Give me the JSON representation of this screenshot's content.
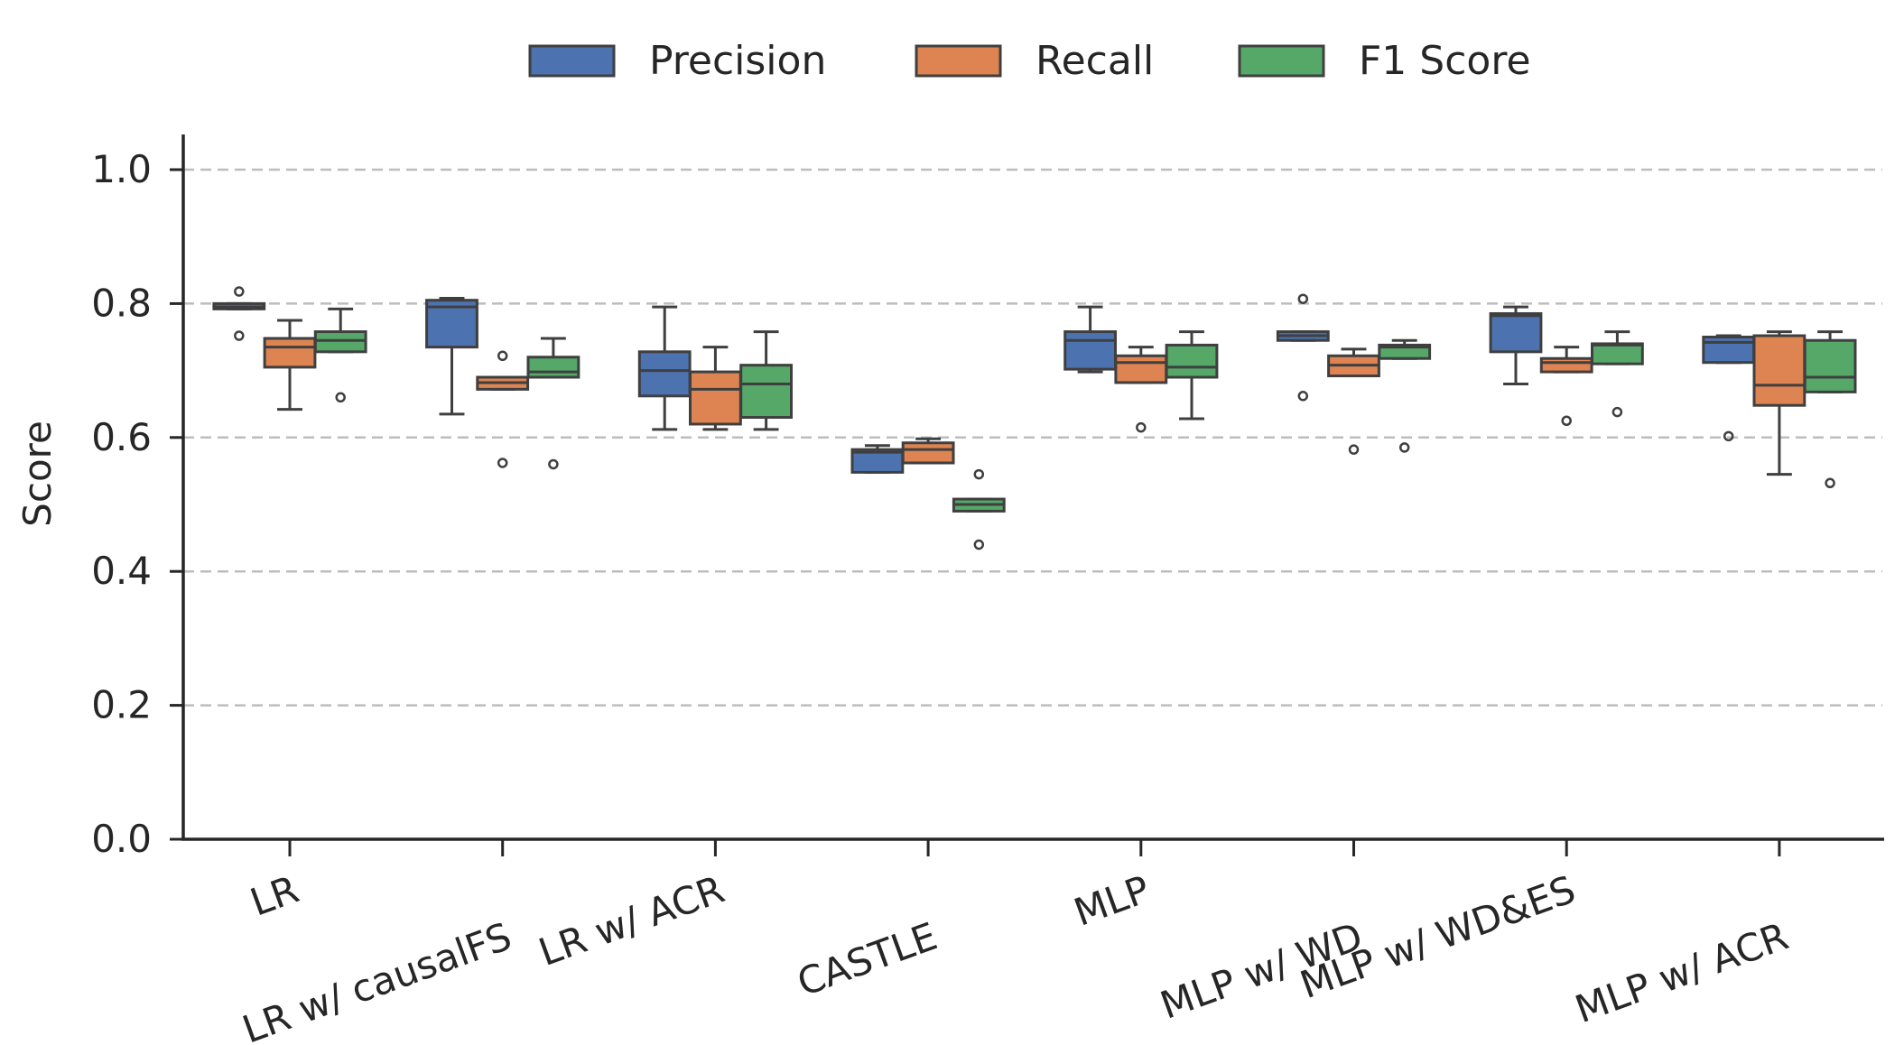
{
  "chart_data": {
    "type": "boxplot",
    "title": "",
    "xlabel": "",
    "ylabel": "Score",
    "ylim": [
      0.0,
      1.05
    ],
    "yticks": [
      0.0,
      0.2,
      0.4,
      0.6,
      0.8,
      1.0
    ],
    "ytick_labels": [
      "0.0",
      "0.2",
      "0.4",
      "0.6",
      "0.8",
      "1.0"
    ],
    "grid": "horizontal dashed",
    "legend": {
      "placement": "top-center"
    },
    "categories": [
      "LR",
      "LR w/ causalFS",
      "LR w/ ACR",
      "CASTLE",
      "MLP",
      "MLP w/ WD",
      "MLP w/ WD&ES",
      "MLP w/ ACR"
    ],
    "series": [
      {
        "name": "Precision",
        "color": "#4c72b0",
        "boxes": [
          {
            "whislo": 0.792,
            "q1": 0.792,
            "med": 0.795,
            "q3": 0.8,
            "whishi": 0.8,
            "fliers": [
              0.818,
              0.752
            ]
          },
          {
            "whislo": 0.635,
            "q1": 0.735,
            "med": 0.795,
            "q3": 0.805,
            "whishi": 0.808,
            "fliers": []
          },
          {
            "whislo": 0.612,
            "q1": 0.662,
            "med": 0.7,
            "q3": 0.728,
            "whishi": 0.795,
            "fliers": []
          },
          {
            "whislo": 0.548,
            "q1": 0.548,
            "med": 0.578,
            "q3": 0.582,
            "whishi": 0.588,
            "fliers": []
          },
          {
            "whislo": 0.698,
            "q1": 0.702,
            "med": 0.745,
            "q3": 0.758,
            "whishi": 0.795,
            "fliers": []
          },
          {
            "whislo": 0.745,
            "q1": 0.745,
            "med": 0.752,
            "q3": 0.758,
            "whishi": 0.758,
            "fliers": [
              0.807,
              0.662
            ]
          },
          {
            "whislo": 0.68,
            "q1": 0.728,
            "med": 0.782,
            "q3": 0.785,
            "whishi": 0.795,
            "fliers": []
          },
          {
            "whislo": 0.712,
            "q1": 0.712,
            "med": 0.742,
            "q3": 0.75,
            "whishi": 0.752,
            "fliers": [
              0.602
            ]
          }
        ]
      },
      {
        "name": "Recall",
        "color": "#dd8452",
        "boxes": [
          {
            "whislo": 0.642,
            "q1": 0.705,
            "med": 0.735,
            "q3": 0.748,
            "whishi": 0.775,
            "fliers": []
          },
          {
            "whislo": 0.672,
            "q1": 0.672,
            "med": 0.682,
            "q3": 0.69,
            "whishi": 0.69,
            "fliers": [
              0.722,
              0.562
            ]
          },
          {
            "whislo": 0.612,
            "q1": 0.62,
            "med": 0.672,
            "q3": 0.698,
            "whishi": 0.735,
            "fliers": []
          },
          {
            "whislo": 0.562,
            "q1": 0.562,
            "med": 0.582,
            "q3": 0.592,
            "whishi": 0.598,
            "fliers": []
          },
          {
            "whislo": 0.682,
            "q1": 0.682,
            "med": 0.712,
            "q3": 0.722,
            "whishi": 0.735,
            "fliers": [
              0.615
            ]
          },
          {
            "whislo": 0.692,
            "q1": 0.692,
            "med": 0.708,
            "q3": 0.722,
            "whishi": 0.732,
            "fliers": [
              0.582
            ]
          },
          {
            "whislo": 0.698,
            "q1": 0.698,
            "med": 0.712,
            "q3": 0.718,
            "whishi": 0.735,
            "fliers": [
              0.625
            ]
          },
          {
            "whislo": 0.545,
            "q1": 0.648,
            "med": 0.678,
            "q3": 0.752,
            "whishi": 0.758,
            "fliers": []
          }
        ]
      },
      {
        "name": "F1 Score",
        "color": "#55a868",
        "boxes": [
          {
            "whislo": 0.728,
            "q1": 0.728,
            "med": 0.745,
            "q3": 0.758,
            "whishi": 0.792,
            "fliers": [
              0.66
            ]
          },
          {
            "whislo": 0.69,
            "q1": 0.69,
            "med": 0.698,
            "q3": 0.72,
            "whishi": 0.748,
            "fliers": [
              0.56
            ]
          },
          {
            "whislo": 0.612,
            "q1": 0.63,
            "med": 0.68,
            "q3": 0.708,
            "whishi": 0.758,
            "fliers": []
          },
          {
            "whislo": 0.49,
            "q1": 0.49,
            "med": 0.5,
            "q3": 0.508,
            "whishi": 0.508,
            "fliers": [
              0.545,
              0.44
            ]
          },
          {
            "whislo": 0.628,
            "q1": 0.69,
            "med": 0.705,
            "q3": 0.738,
            "whishi": 0.758,
            "fliers": []
          },
          {
            "whislo": 0.718,
            "q1": 0.718,
            "med": 0.735,
            "q3": 0.738,
            "whishi": 0.745,
            "fliers": [
              0.585
            ]
          },
          {
            "whislo": 0.71,
            "q1": 0.71,
            "med": 0.738,
            "q3": 0.74,
            "whishi": 0.758,
            "fliers": [
              0.638
            ]
          },
          {
            "whislo": 0.668,
            "q1": 0.668,
            "med": 0.69,
            "q3": 0.745,
            "whishi": 0.758,
            "fliers": [
              0.532
            ]
          }
        ]
      }
    ]
  }
}
